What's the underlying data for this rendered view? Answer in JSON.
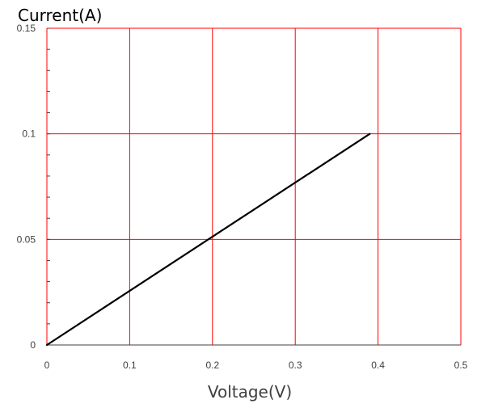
{
  "chart_data": {
    "type": "line",
    "title": "",
    "xlabel": "Voltage(V)",
    "ylabel": "Current(A)",
    "xlim": [
      0,
      0.5
    ],
    "ylim": [
      0,
      0.15
    ],
    "x_ticks": [
      0,
      0.1,
      0.2,
      0.3,
      0.4,
      0.5
    ],
    "x_tick_labels": [
      "0",
      "0.1",
      "0.2",
      "0.3",
      "0.4",
      "0.5"
    ],
    "y_ticks": [
      0,
      0.05,
      0.1,
      0.15
    ],
    "y_tick_labels": [
      "0",
      "0.05",
      "0.1",
      "0.15"
    ],
    "y_minor_tick_step": 0.01,
    "grid": true,
    "legend": "none",
    "colors": {
      "grid": "#ff0000",
      "line": "#000000",
      "axis": "#404040"
    },
    "series": [
      {
        "x": [
          0,
          0.39
        ],
        "y": [
          0,
          0.1
        ]
      }
    ]
  }
}
